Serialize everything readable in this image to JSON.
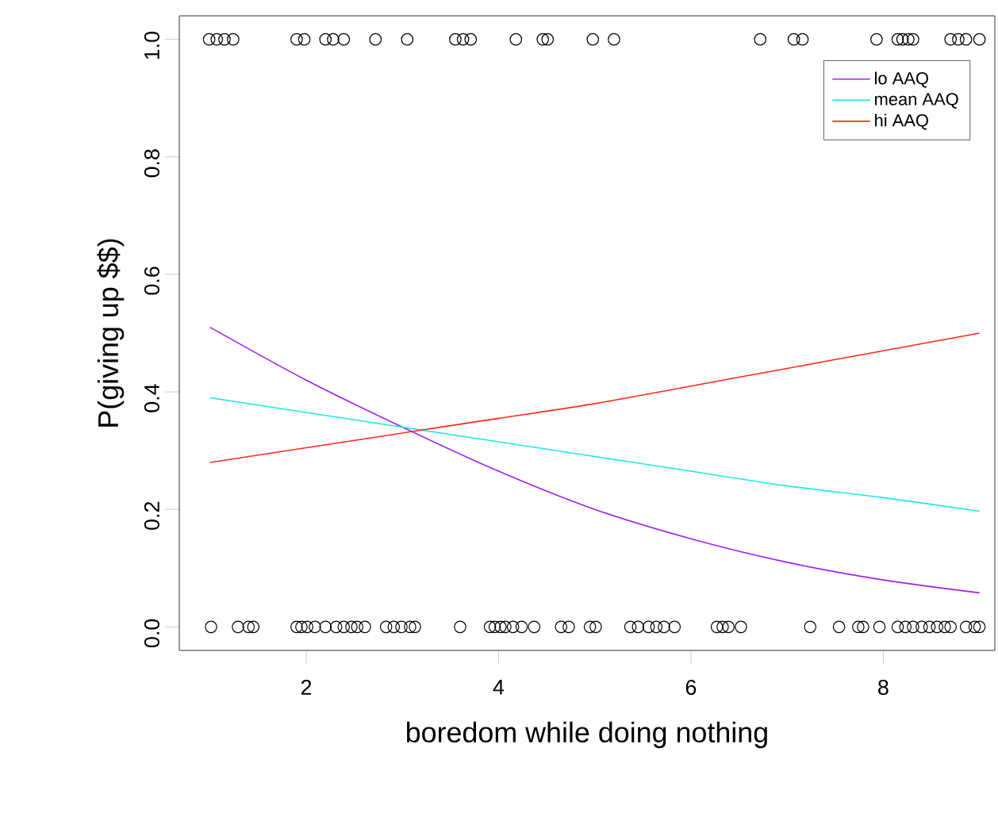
{
  "chart_data": {
    "type": "line",
    "xlabel": "boredom while doing nothing",
    "ylabel": "P(giving up $$)",
    "xlim": [
      0.68,
      9.16
    ],
    "ylim": [
      -0.04,
      1.04
    ],
    "xticks": [
      2,
      4,
      6,
      8
    ],
    "yticks": [
      {
        "value": 0,
        "label": "0.0"
      },
      {
        "value": 0.2,
        "label": "0.2"
      },
      {
        "value": 0.4,
        "label": "0.4"
      },
      {
        "value": 0.6,
        "label": "0.6"
      },
      {
        "value": 0.8,
        "label": "0.8"
      },
      {
        "value": 1,
        "label": "1.0"
      }
    ],
    "grid": false,
    "legend": "top right",
    "series": [
      {
        "type": "scatter",
        "marker": "circle",
        "color": "#000000",
        "x": [
          0.99,
          1.07,
          1.15,
          1.24,
          1.9,
          1.98,
          2.2,
          2.28,
          2.39,
          2.72,
          3.05,
          3.55,
          3.63,
          3.71,
          4.18,
          4.46,
          4.51,
          4.98,
          5.2,
          6.72,
          7.07,
          7.16,
          7.93,
          8.15,
          8.2,
          8.26,
          8.31,
          8.7,
          8.78,
          8.86,
          9.0,
          1.01,
          1.29,
          1.4,
          1.45,
          1.9,
          1.95,
          2.01,
          2.09,
          2.2,
          2.31,
          2.39,
          2.47,
          2.53,
          2.61,
          2.83,
          2.91,
          2.99,
          3.08,
          3.13,
          3.6,
          3.91,
          3.96,
          4.02,
          4.07,
          4.15,
          4.24,
          4.37,
          4.65,
          4.73,
          4.95,
          5.01,
          5.37,
          5.45,
          5.56,
          5.64,
          5.72,
          5.83,
          6.27,
          6.33,
          6.39,
          6.52,
          7.24,
          7.54,
          7.74,
          7.79,
          7.96,
          8.15,
          8.23,
          8.31,
          8.4,
          8.48,
          8.56,
          8.64,
          8.7,
          8.86,
          8.95,
          9.0
        ],
        "values": [
          1,
          1,
          1,
          1,
          1,
          1,
          1,
          1,
          1,
          1,
          1,
          1,
          1,
          1,
          1,
          1,
          1,
          1,
          1,
          1,
          1,
          1,
          1,
          1,
          1,
          1,
          1,
          1,
          1,
          1,
          1,
          0,
          0,
          0,
          0,
          0,
          0,
          0,
          0,
          0,
          0,
          0,
          0,
          0,
          0,
          0,
          0,
          0,
          0,
          0,
          0,
          0,
          0,
          0,
          0,
          0,
          0,
          0,
          0,
          0,
          0,
          0,
          0,
          0,
          0,
          0,
          0,
          0,
          0,
          0,
          0,
          0,
          0,
          0,
          0,
          0,
          0,
          0,
          0,
          0,
          0,
          0,
          0,
          0,
          0,
          0,
          0,
          0
        ]
      },
      {
        "name": "lo AAQ",
        "color": "#a020f0",
        "x": [
          1,
          2,
          3,
          4,
          5,
          6,
          7,
          8,
          9
        ],
        "values": [
          0.51,
          0.42,
          0.34,
          0.265,
          0.2,
          0.15,
          0.11,
          0.08,
          0.058
        ]
      },
      {
        "name": "mean AAQ",
        "color": "#22e5e5",
        "x": [
          1,
          2,
          3,
          4,
          5,
          6,
          7,
          8,
          9
        ],
        "values": [
          0.39,
          0.365,
          0.34,
          0.315,
          0.29,
          0.265,
          0.24,
          0.22,
          0.197
        ]
      },
      {
        "name": "hi AAQ",
        "color": "#ff2a1a",
        "x": [
          1,
          2,
          3,
          4,
          5,
          6,
          7,
          8,
          9
        ],
        "values": [
          0.28,
          0.305,
          0.33,
          0.355,
          0.38,
          0.41,
          0.44,
          0.47,
          0.5
        ]
      }
    ]
  }
}
